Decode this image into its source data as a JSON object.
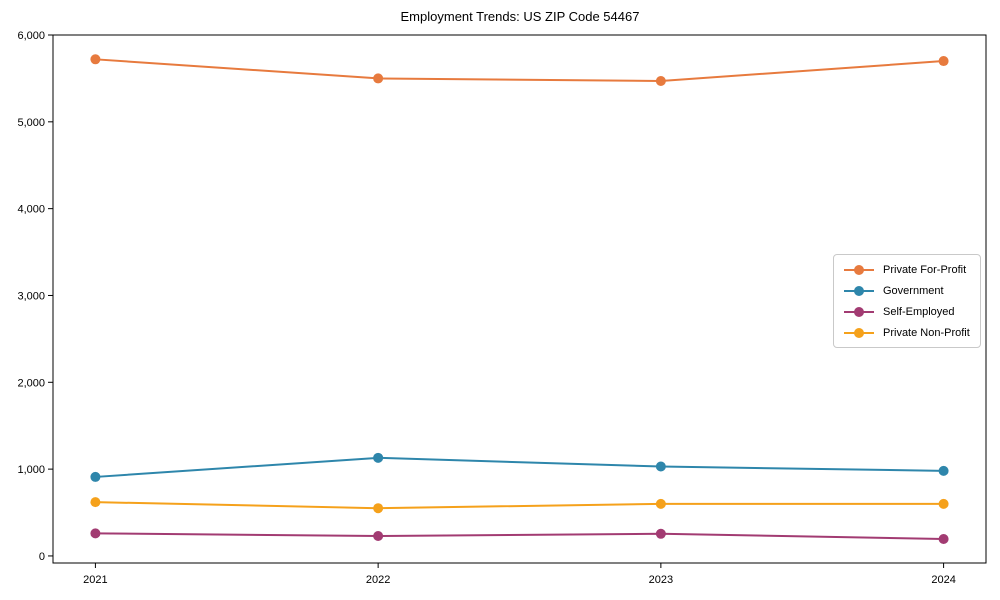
{
  "figure": {
    "background": "#ffffff",
    "axis_color": "#000000"
  },
  "chart_data": {
    "type": "line",
    "title": "Employment Trends: US ZIP Code 54467",
    "x": [
      2021,
      2022,
      2023,
      2024
    ],
    "x_tick_labels": [
      "2021",
      "2022",
      "2023",
      "2024"
    ],
    "series": [
      {
        "name": "Private For-Profit",
        "color": "#E77A3E",
        "values": [
          5720,
          5500,
          5470,
          5700
        ]
      },
      {
        "name": "Government",
        "color": "#2E86AB",
        "values": [
          910,
          1130,
          1030,
          980
        ]
      },
      {
        "name": "Self-Employed",
        "color": "#A23B72",
        "values": [
          260,
          230,
          255,
          195
        ]
      },
      {
        "name": "Private Non-Profit",
        "color": "#F5A11B",
        "values": [
          620,
          550,
          600,
          600
        ]
      }
    ],
    "xlabel": "",
    "ylabel": "",
    "ylim": [
      0,
      6000
    ],
    "yticks": [
      0,
      1000,
      2000,
      3000,
      4000,
      5000,
      6000
    ],
    "ytick_labels": [
      "0",
      "1,000",
      "2,000",
      "3,000",
      "4,000",
      "5,000",
      "6,000"
    ],
    "grid": false,
    "legend_position": "center right",
    "marker": "circle",
    "marker_size": 10,
    "line_width": 2
  }
}
